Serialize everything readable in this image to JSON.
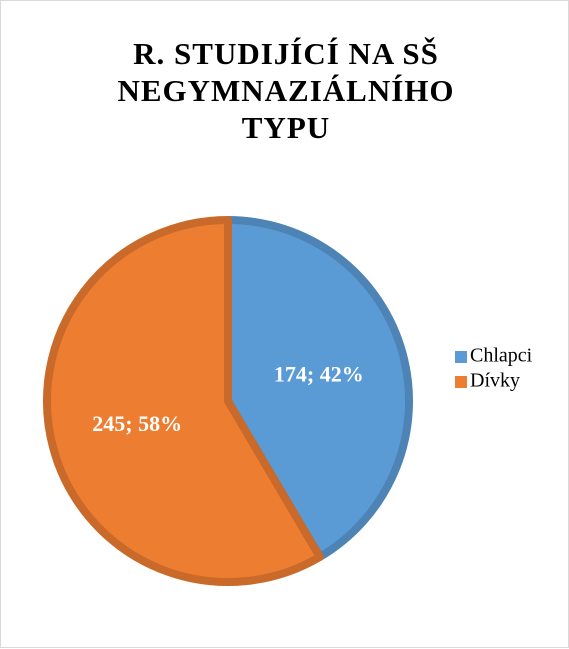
{
  "chart_data": {
    "type": "pie",
    "title": "R. STUDIJÍCÍ NA SŠ NEGYMNAZIÁLNÍHO TYPU",
    "categories": [
      "Chlapci",
      "Dívky"
    ],
    "values": [
      174,
      245
    ],
    "value_labels": [
      "174; 42%",
      "245; 58%"
    ],
    "colors": [
      "#5b9bd5",
      "#ed7d31"
    ],
    "legend": "right"
  }
}
